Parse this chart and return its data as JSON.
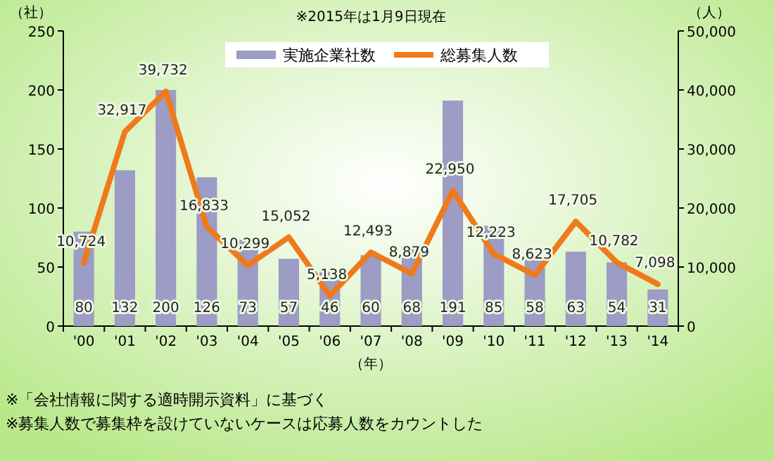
{
  "chart_data": {
    "type": "bar",
    "title": "※2015年は1月9日現在",
    "ylabel": "（社）",
    "y2label": "（人）",
    "xlabel": "（年）",
    "categories": [
      "'00",
      "'01",
      "'02",
      "'03",
      "'04",
      "'05",
      "'06",
      "'07",
      "'08",
      "'09",
      "'10",
      "'11",
      "'12",
      "'13",
      "'14"
    ],
    "series": [
      {
        "name": "実施企業社数",
        "color": "#9c9cc4",
        "values": [
          80,
          132,
          200,
          126,
          73,
          57,
          46,
          60,
          68,
          191,
          85,
          58,
          63,
          54,
          31
        ]
      },
      {
        "name": "総募集人数",
        "type": "line",
        "axis": "y2",
        "color": "#f07a1a",
        "values": [
          10724,
          32917,
          39732,
          16833,
          10299,
          15052,
          5138,
          12493,
          8879,
          22950,
          12223,
          8623,
          17705,
          10782,
          7098
        ],
        "value_labels": [
          "10,724",
          "32,917",
          "39,732",
          "16,833",
          "10,299",
          "15,052",
          "5,138",
          "12,493",
          "8,879",
          "22,950",
          "12,223",
          "8,623",
          "17,705",
          "10,782",
          "7,098"
        ]
      }
    ],
    "ylim": [
      0,
      250
    ],
    "yticks": [
      0,
      50,
      100,
      150,
      200,
      250
    ],
    "y2lim": [
      0,
      50000
    ],
    "y2ticks": [
      {
        "value": 0,
        "label": "0"
      },
      {
        "value": 10000,
        "label": "10,000"
      },
      {
        "value": 20000,
        "label": "20,000"
      },
      {
        "value": 30000,
        "label": "30,000"
      },
      {
        "value": 40000,
        "label": "40,000"
      },
      {
        "value": 50000,
        "label": "50,000"
      }
    ],
    "data_labels": true,
    "legend": "top",
    "grid": false,
    "annotations": [
      "※「会社情報に関する適時開示資料」に基づく",
      "※募集人数で募集枠を設けていないケースは応募人数をカウントした"
    ]
  }
}
